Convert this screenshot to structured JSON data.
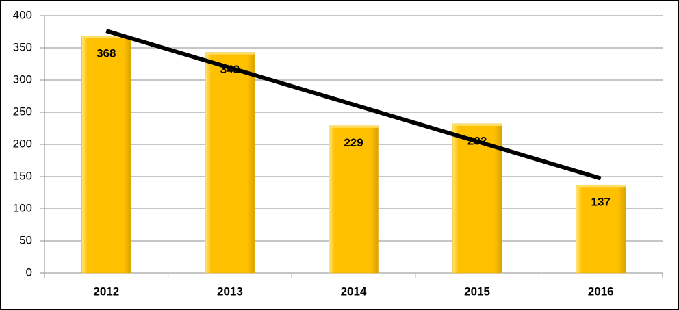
{
  "chart_data": {
    "type": "bar",
    "categories": [
      "2012",
      "2013",
      "2014",
      "2015",
      "2016"
    ],
    "values": [
      368,
      343,
      229,
      232,
      137
    ],
    "color": "#ffc000",
    "ylim": [
      0,
      400
    ],
    "yticks": [
      0,
      50,
      100,
      150,
      200,
      250,
      300,
      350,
      400
    ],
    "grid": true,
    "data_labels": true,
    "trendline": "linear",
    "trendline_color": "#000000"
  }
}
